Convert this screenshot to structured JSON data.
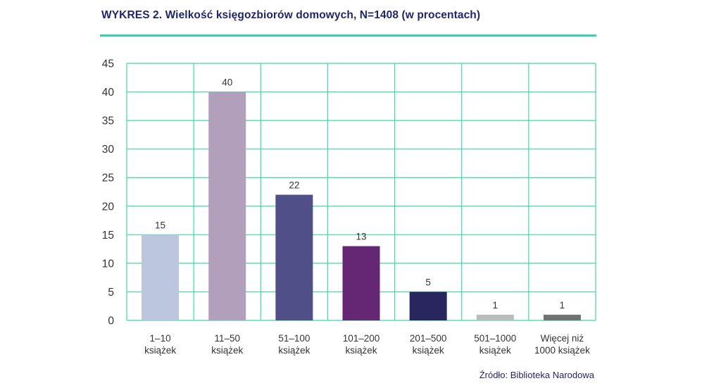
{
  "title": "WYKRES 2. Wielkość księgozbiorów domowych, N=1408 (w procentach)",
  "source": "Źródło: Biblioteka Narodowa",
  "colors": {
    "grid": "#3fd8a8",
    "axis_text": "#333333",
    "title": "#23256b",
    "rule": "#2fd7a6"
  },
  "chart_data": {
    "type": "bar",
    "categories": [
      [
        "1–10",
        "książek"
      ],
      [
        "11–50",
        "książek"
      ],
      [
        "51–100",
        "książek"
      ],
      [
        "101–200",
        "książek"
      ],
      [
        "201–500",
        "książek"
      ],
      [
        "501–1000",
        "książek"
      ],
      [
        "Więcej niż",
        "1000 książek"
      ]
    ],
    "values": [
      15,
      40,
      22,
      13,
      5,
      1,
      1
    ],
    "data_labels": [
      "15",
      "40",
      "22",
      "13",
      "5",
      "1",
      "1"
    ],
    "bar_colors": [
      "#bcc7df",
      "#b19fbc",
      "#504f87",
      "#652674",
      "#29255f",
      "#b8bdbb",
      "#6f7371"
    ],
    "ylim": [
      0,
      45
    ],
    "yticks": [
      0,
      5,
      10,
      15,
      20,
      25,
      30,
      35,
      40,
      45
    ],
    "grid": true,
    "legend": "none"
  }
}
